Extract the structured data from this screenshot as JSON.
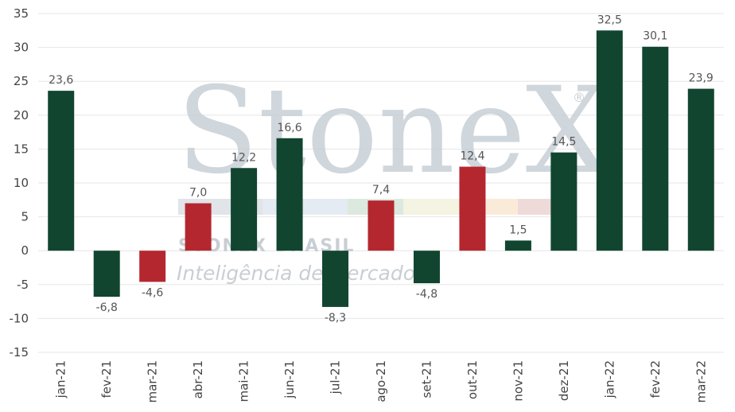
{
  "chart_data": {
    "type": "bar",
    "categories": [
      "jan-21",
      "fev-21",
      "mar-21",
      "abr-21",
      "mai-21",
      "jun-21",
      "jul-21",
      "ago-21",
      "set-21",
      "out-21",
      "nov-21",
      "dez-21",
      "jan-22",
      "fev-22",
      "mar-22"
    ],
    "values": [
      23.6,
      -6.8,
      -4.6,
      7.0,
      12.2,
      16.6,
      -8.3,
      7.4,
      -4.8,
      12.4,
      1.5,
      14.5,
      32.5,
      30.1,
      23.9
    ],
    "value_labels": [
      "23,6",
      "-6,8",
      "-4,6",
      "7,0",
      "12,2",
      "16,6",
      "-8,3",
      "7,4",
      "-4,8",
      "12,4",
      "1,5",
      "14,5",
      "32,5",
      "30,1",
      "23,9"
    ],
    "bar_colors": [
      "#11452f",
      "#11452f",
      "#b5272f",
      "#b5272f",
      "#11452f",
      "#11452f",
      "#11452f",
      "#b5272f",
      "#11452f",
      "#b5272f",
      "#11452f",
      "#11452f",
      "#11452f",
      "#11452f",
      "#11452f"
    ],
    "ylim": [
      -15,
      35
    ],
    "yticks": [
      -15,
      -10,
      -5,
      0,
      5,
      10,
      15,
      20,
      25,
      30,
      35
    ],
    "grid": true,
    "title": "",
    "xlabel": "",
    "ylabel": ""
  },
  "watermark": {
    "brand": "StoneX",
    "registered": "®",
    "line1": "STONEX BRASIL",
    "line2": "Inteligência de Mercado"
  }
}
